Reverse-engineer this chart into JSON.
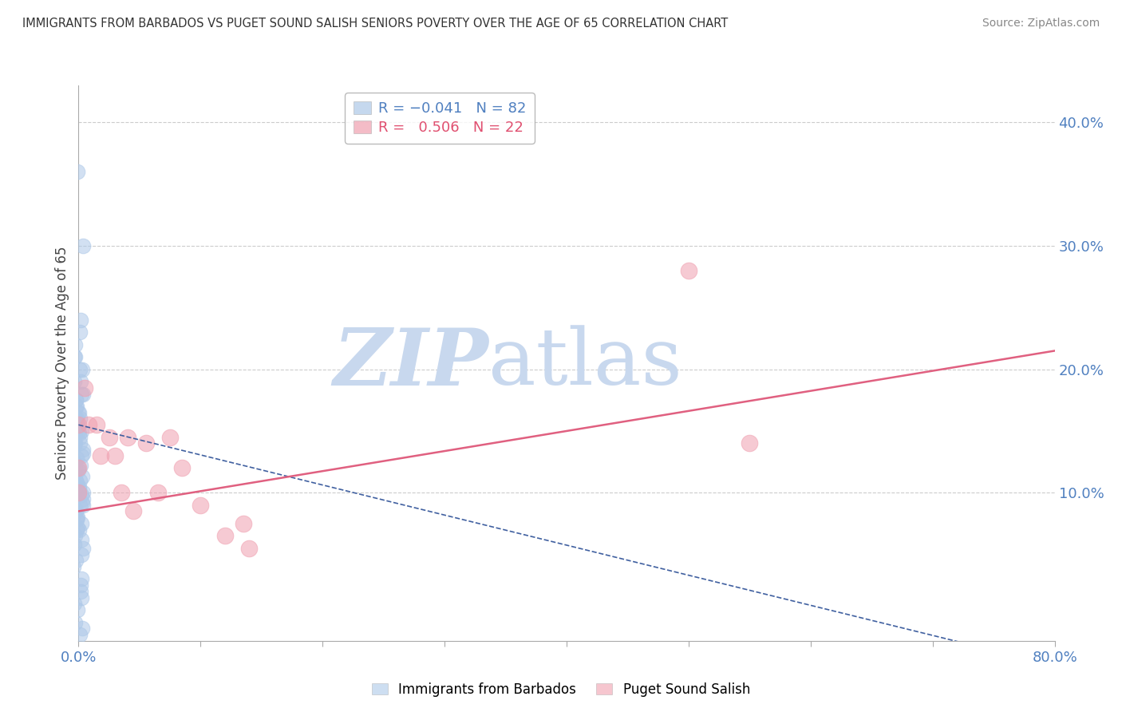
{
  "title": "IMMIGRANTS FROM BARBADOS VS PUGET SOUND SALISH SENIORS POVERTY OVER THE AGE OF 65 CORRELATION CHART",
  "source": "Source: ZipAtlas.com",
  "ylabel": "Seniors Poverty Over the Age of 65",
  "xlim": [
    0.0,
    0.8
  ],
  "ylim": [
    -0.02,
    0.43
  ],
  "xticks": [
    0.0,
    0.1,
    0.2,
    0.3,
    0.4,
    0.5,
    0.6,
    0.7,
    0.8
  ],
  "yticks_right": [
    0.1,
    0.2,
    0.3,
    0.4
  ],
  "blue_scatter_x": [
    0.0,
    0.0,
    0.0,
    0.0,
    0.0,
    0.0,
    0.0,
    0.0,
    0.0,
    0.0,
    0.0,
    0.0,
    0.0,
    0.0,
    0.0,
    0.0,
    0.0,
    0.0,
    0.0,
    0.0,
    0.0,
    0.0,
    0.0,
    0.0,
    0.0,
    0.0,
    0.0,
    0.0,
    0.0,
    0.0,
    0.0,
    0.0,
    0.0,
    0.0,
    0.0,
    0.0,
    0.0,
    0.0,
    0.0,
    0.0,
    0.0,
    0.0,
    0.0,
    0.0,
    0.0,
    0.0,
    0.0,
    0.0,
    0.0,
    0.0,
    0.0,
    0.0,
    0.0,
    0.0,
    0.0,
    0.0,
    0.0,
    0.0,
    0.0,
    0.0,
    0.0,
    0.0,
    0.0,
    0.0,
    0.0,
    0.0,
    0.0,
    0.0,
    0.0,
    0.0,
    0.0,
    0.0,
    0.0,
    0.0,
    0.0,
    0.0,
    0.0,
    0.0,
    0.0,
    0.0,
    0.0,
    0.0
  ],
  "blue_scatter_y": [
    0.36,
    0.3,
    0.24,
    0.23,
    0.22,
    0.21,
    0.21,
    0.2,
    0.2,
    0.19,
    0.19,
    0.18,
    0.18,
    0.175,
    0.175,
    0.17,
    0.17,
    0.165,
    0.165,
    0.16,
    0.16,
    0.16,
    0.155,
    0.155,
    0.15,
    0.15,
    0.15,
    0.148,
    0.145,
    0.143,
    0.14,
    0.14,
    0.138,
    0.135,
    0.132,
    0.13,
    0.128,
    0.125,
    0.122,
    0.12,
    0.12,
    0.118,
    0.115,
    0.113,
    0.11,
    0.11,
    0.108,
    0.105,
    0.103,
    0.1,
    0.1,
    0.098,
    0.095,
    0.092,
    0.09,
    0.09,
    0.088,
    0.085,
    0.083,
    0.08,
    0.08,
    0.078,
    0.075,
    0.072,
    0.07,
    0.07,
    0.065,
    0.062,
    0.058,
    0.055,
    0.05,
    0.045,
    0.04,
    0.03,
    0.025,
    0.02,
    0.015,
    0.01,
    0.005,
    -0.005,
    -0.01,
    -0.015
  ],
  "pink_scatter_x": [
    0.0,
    0.0,
    0.0,
    0.005,
    0.008,
    0.015,
    0.018,
    0.025,
    0.03,
    0.035,
    0.04,
    0.045,
    0.055,
    0.065,
    0.075,
    0.085,
    0.1,
    0.12,
    0.135,
    0.14,
    0.5,
    0.55
  ],
  "pink_scatter_y": [
    0.155,
    0.12,
    0.1,
    0.185,
    0.155,
    0.155,
    0.13,
    0.145,
    0.13,
    0.1,
    0.145,
    0.085,
    0.14,
    0.1,
    0.145,
    0.12,
    0.09,
    0.065,
    0.075,
    0.055,
    0.28,
    0.14
  ],
  "blue_line_x": [
    0.0,
    0.8
  ],
  "blue_line_y": [
    0.155,
    -0.04
  ],
  "pink_line_x": [
    0.0,
    0.8
  ],
  "pink_line_y": [
    0.085,
    0.215
  ],
  "blue_color": "#adc8e8",
  "pink_color": "#f0a0b0",
  "blue_line_color": "#4060a0",
  "pink_line_color": "#e06080",
  "watermark_zip": "ZIP",
  "watermark_atlas": "atlas",
  "watermark_color_zip": "#c8d8ee",
  "watermark_color_atlas": "#c8d8ee",
  "background_color": "#ffffff",
  "grid_color": "#cccccc"
}
